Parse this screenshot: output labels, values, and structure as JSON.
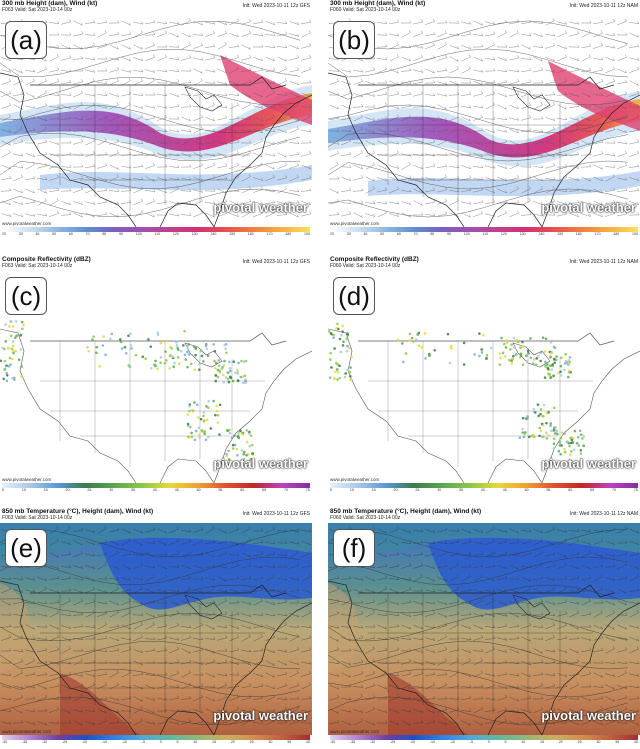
{
  "panels": [
    {
      "id": "a",
      "letter": "(a)",
      "title": "300 mb Height (dam), Wind (kt)",
      "valid": "F063 Valid: Sat 2023-10-14 00z",
      "init": "Init: Wed 2023-10-11 12z GFS",
      "site": "www.pivotalweather.com",
      "brand": "pivotal weather",
      "map_type": "jet",
      "colorbar_colors": [
        "#ffffff",
        "#cde0f2",
        "#8fb8e0",
        "#5f8fd0",
        "#7a5fc0",
        "#a04fb0",
        "#c04090",
        "#d43070",
        "#e85050",
        "#f08040",
        "#f6b040",
        "#f8e060"
      ],
      "ticks": [
        "20",
        "30",
        "40",
        "50",
        "60",
        "70",
        "80",
        "90",
        "100",
        "110",
        "120",
        "130",
        "140",
        "150",
        "160",
        "170",
        "180",
        "190"
      ]
    },
    {
      "id": "b",
      "letter": "(b)",
      "title": "300 mb Height (dam), Wind (kt)",
      "valid": "F060 Valid: Sat 2023-10-14 00z",
      "init": "Init: Wed 2023-10-11 12z NAM",
      "site": "www.pivotalweather.com",
      "brand": "pivotal weather",
      "map_type": "jet",
      "colorbar_colors": [
        "#ffffff",
        "#cde0f2",
        "#8fb8e0",
        "#5f8fd0",
        "#7a5fc0",
        "#a04fb0",
        "#c04090",
        "#d43070",
        "#e85050",
        "#f08040",
        "#f6b040",
        "#f8e060"
      ],
      "ticks": [
        "20",
        "30",
        "40",
        "50",
        "60",
        "70",
        "80",
        "90",
        "100",
        "110",
        "120",
        "130",
        "140",
        "150",
        "160",
        "170",
        "180",
        "190"
      ]
    },
    {
      "id": "c",
      "letter": "(c)",
      "title": "Composite Reflectivity (dBZ)",
      "valid": "F063 Valid: Sat 2023-10-14 00z",
      "init": "Init: Wed 2023-10-11 12z GFS",
      "site": "www.pivotalweather.com",
      "brand": "pivotal weather",
      "map_type": "radar",
      "colorbar_colors": [
        "#e8f0f8",
        "#a8c8e8",
        "#5898d8",
        "#3a7a4a",
        "#5aa850",
        "#8ac848",
        "#e8d838",
        "#f0a030",
        "#e05030",
        "#c02828",
        "#c040c0",
        "#8030a0"
      ],
      "ticks": [
        "5",
        "10",
        "15",
        "20",
        "25",
        "30",
        "35",
        "40",
        "45",
        "50",
        "55",
        "60",
        "65",
        "70",
        "75"
      ]
    },
    {
      "id": "d",
      "letter": "(d)",
      "title": "Composite Reflectivity (dBZ)",
      "valid": "F060 Valid: Sat 2023-10-14 00z",
      "init": "Init: Wed 2023-10-11 12z NAM",
      "site": "www.pivotalweather.com",
      "brand": "pivotal weather",
      "map_type": "radar",
      "colorbar_colors": [
        "#e8f0f8",
        "#a8c8e8",
        "#5898d8",
        "#3a7a4a",
        "#5aa850",
        "#8ac848",
        "#e8d838",
        "#f0a030",
        "#e05030",
        "#c02828",
        "#c040c0",
        "#8030a0"
      ],
      "ticks": [
        "5",
        "10",
        "15",
        "20",
        "25",
        "30",
        "35",
        "40",
        "45",
        "50",
        "55",
        "60",
        "65",
        "70",
        "75"
      ]
    },
    {
      "id": "e",
      "letter": "(e)",
      "title": "850 mb Temperature (°C), Height (dam), Wind (kt)",
      "valid": "F063 Valid: Sat 2023-10-14 00z",
      "init": "Init: Wed 2023-10-11 12z GFS",
      "site": "www.pivotalweather.com",
      "brand": "pivotal weather",
      "map_type": "temp",
      "colorbar_colors": [
        "#e0d0f0",
        "#b080d0",
        "#7040a0",
        "#2050c0",
        "#3080e0",
        "#50a8d8",
        "#60b8a0",
        "#90b878",
        "#c8b060",
        "#d09050",
        "#c06040",
        "#a03030"
      ],
      "ticks": [
        "-40",
        "-35",
        "-30",
        "-25",
        "-20",
        "-15",
        "-10",
        "-5",
        "0",
        "5",
        "10",
        "15",
        "20",
        "25",
        "30",
        "35",
        "40"
      ]
    },
    {
      "id": "f",
      "letter": "(f)",
      "title": "850 mb Temperature (°C), Height (dam), Wind (kt)",
      "valid": "F060 Valid: Sat 2023-10-14 00z",
      "init": "Init: Wed 2023-10-11 12z NAM",
      "site": "www.pivotalweather.com",
      "brand": "pivotal weather",
      "map_type": "temp",
      "colorbar_colors": [
        "#e0d0f0",
        "#b080d0",
        "#7040a0",
        "#2050c0",
        "#3080e0",
        "#50a8d8",
        "#60b8a0",
        "#90b878",
        "#c8b060",
        "#d09050",
        "#c06040",
        "#a03030"
      ],
      "ticks": [
        "-40",
        "-35",
        "-30",
        "-25",
        "-20",
        "-15",
        "-10",
        "-5",
        "0",
        "5",
        "10",
        "15",
        "20",
        "25",
        "30",
        "35",
        "40"
      ]
    }
  ]
}
